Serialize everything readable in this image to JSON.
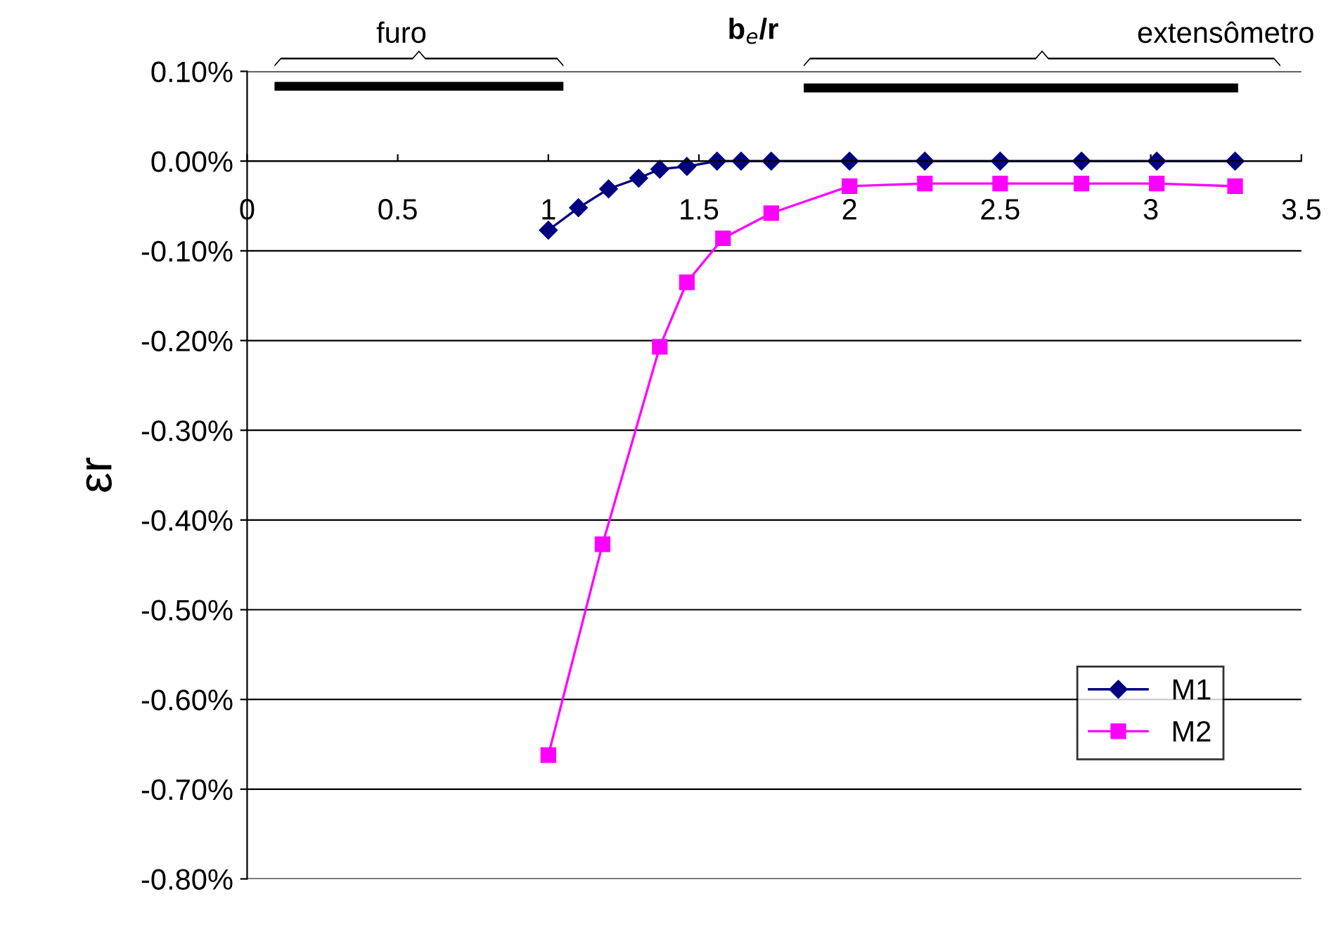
{
  "chart_data": {
    "type": "line",
    "xlabel": "b$_{e}$/r",
    "ylabel": "εr",
    "xlim": [
      0,
      3.5
    ],
    "xticks": [
      0,
      0.5,
      1,
      1.5,
      2,
      2.5,
      3,
      3.5
    ],
    "ylim": [
      -0.8,
      0.1
    ],
    "yticks": [
      {
        "value": 0.1,
        "label": "0.10%"
      },
      {
        "value": 0,
        "label": "0.00%"
      },
      {
        "value": -0.1,
        "label": "-0.10%"
      },
      {
        "value": -0.2,
        "label": "-0.20%"
      },
      {
        "value": -0.3,
        "label": "-0.30%"
      },
      {
        "value": -0.4,
        "label": "-0.40%"
      },
      {
        "value": -0.5,
        "label": "-0.50%"
      },
      {
        "value": -0.6,
        "label": "-0.60%"
      },
      {
        "value": -0.7,
        "label": "-0.70%"
      },
      {
        "value": -0.8,
        "label": "-0.80%"
      }
    ],
    "grid": "y",
    "legend": "bottom right",
    "line_style": "solid",
    "annotations": [
      "furo",
      "extensômetro"
    ],
    "series": [
      {
        "name": "M1",
        "color": "#000080",
        "marker": "diamond",
        "x": [
          1.0,
          1.1,
          1.2,
          1.3,
          1.37,
          1.46,
          1.56,
          1.64,
          1.74,
          2.0,
          2.25,
          2.5,
          2.77,
          3.02,
          3.28
        ],
        "values": [
          -0.077,
          -0.052,
          -0.031,
          -0.019,
          -0.009,
          -0.006,
          0,
          0,
          0,
          0,
          0,
          0,
          0,
          0,
          0
        ]
      },
      {
        "name": "M2",
        "color": "#ff00ff",
        "marker": "square",
        "x": [
          1.0,
          1.18,
          1.37,
          1.46,
          1.58,
          1.74,
          2.0,
          2.25,
          2.5,
          2.77,
          3.02,
          3.28
        ],
        "values": [
          -0.662,
          -0.427,
          -0.207,
          -0.135,
          -0.086,
          -0.058,
          -0.028,
          -0.025,
          -0.025,
          -0.025,
          -0.025,
          -0.028
        ]
      }
    ]
  }
}
